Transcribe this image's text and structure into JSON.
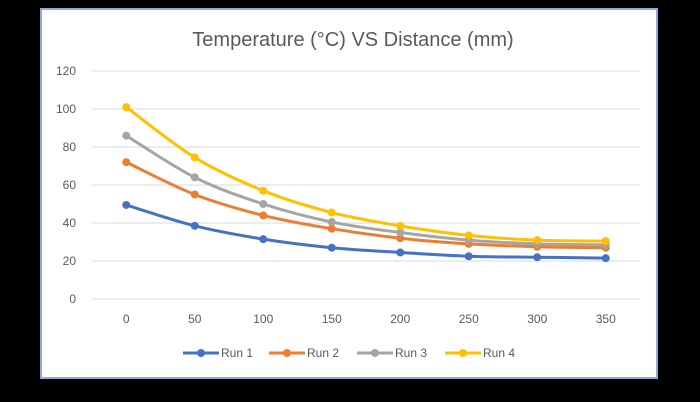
{
  "chart_data": {
    "type": "line",
    "title": "Temperature (°C) VS Distance (mm)",
    "xlabel": "",
    "ylabel": "",
    "categories": [
      "0",
      "50",
      "100",
      "150",
      "200",
      "250",
      "300",
      "350"
    ],
    "yticks": [
      "0",
      "20",
      "40",
      "60",
      "80",
      "100",
      "120"
    ],
    "ylim": [
      0,
      120
    ],
    "grid": true,
    "legend": "bottom",
    "series": [
      {
        "name": "Run 1",
        "color": "#4472c4",
        "values": [
          49.5,
          38.5,
          31.5,
          27,
          24.5,
          22.5,
          22,
          21.5
        ]
      },
      {
        "name": "Run 2",
        "color": "#ed7d31",
        "values": [
          72,
          55,
          44,
          37,
          32,
          29,
          27.5,
          27
        ]
      },
      {
        "name": "Run 3",
        "color": "#a5a5a5",
        "values": [
          86,
          64,
          50,
          40.5,
          35,
          31,
          29,
          28.5
        ]
      },
      {
        "name": "Run 4",
        "color": "#ffc000",
        "values": [
          101,
          74.5,
          57,
          45.5,
          38.5,
          33.5,
          31,
          30.5
        ]
      }
    ]
  }
}
